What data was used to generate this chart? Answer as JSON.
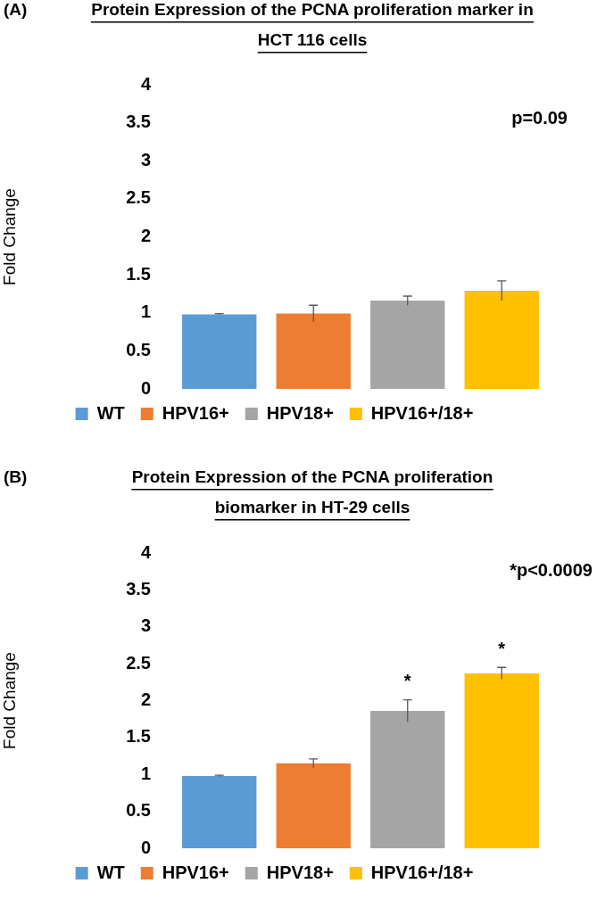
{
  "chart_data": [
    {
      "type": "bar",
      "title": "Protein Expression of the PCNA proliferation marker in HCT 116 cells",
      "ylabel": "Fold Change",
      "annotations": [
        "(A)",
        "p=0.09"
      ],
      "categories": [
        null
      ],
      "series": [
        {
          "name": "WT",
          "color": "#5b9bd5",
          "values": [
            0.98
          ],
          "errors": [
            0.01
          ]
        },
        {
          "name": "HPV16+",
          "color": "#ed7d31",
          "values": [
            0.99
          ],
          "errors": [
            0.11
          ]
        },
        {
          "name": "HPV18+",
          "color": "#a5a5a5",
          "values": [
            1.16
          ],
          "errors": [
            0.06
          ]
        },
        {
          "name": "HPV16+/18+",
          "color": "#ffc000",
          "values": [
            1.29
          ],
          "errors": [
            0.13
          ]
        }
      ],
      "ylim": [
        0,
        4
      ],
      "yticks": [
        0,
        0.5,
        1,
        1.5,
        2,
        2.5,
        3,
        3.5,
        4
      ],
      "legend": "bottom",
      "tick_labels": "y"
    },
    {
      "type": "bar",
      "title": "Protein Expression of the PCNA proliferation biomarker in HT-29 cells",
      "ylabel": "Fold Change",
      "annotations": [
        "(B)",
        "*p<0.0009"
      ],
      "categories": [
        null
      ],
      "series": [
        {
          "name": "WT",
          "color": "#5b9bd5",
          "values": [
            0.98
          ],
          "errors": [
            0.01
          ]
        },
        {
          "name": "HPV16+",
          "color": "#ed7d31",
          "values": [
            1.15
          ],
          "errors": [
            0.06
          ]
        },
        {
          "name": "HPV18+",
          "color": "#a5a5a5",
          "values": [
            1.86
          ],
          "errors": [
            0.15
          ],
          "value_labels": [
            "*"
          ]
        },
        {
          "name": "HPV16+/18+",
          "color": "#ffc000",
          "values": [
            2.37
          ],
          "errors": [
            0.08
          ],
          "value_labels": [
            "*"
          ]
        }
      ],
      "ylim": [
        0,
        4
      ],
      "yticks": [
        0,
        0.5,
        1,
        1.5,
        2,
        2.5,
        3,
        3.5,
        4
      ],
      "legend": "bottom",
      "tick_labels": "y"
    }
  ]
}
